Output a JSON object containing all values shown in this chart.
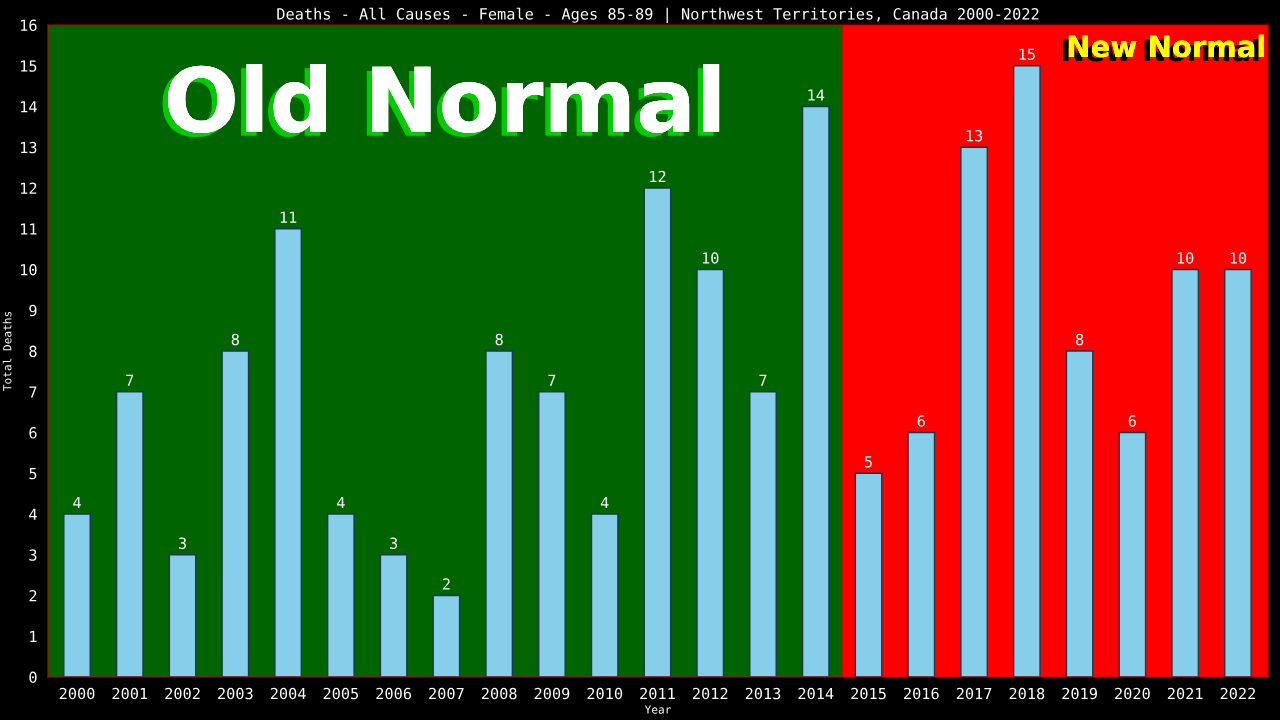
{
  "chart_data": {
    "type": "bar",
    "title": "Deaths - All Causes - Female - Ages 85-89 | Northwest Territories, Canada 2000-2022",
    "xlabel": "Year",
    "ylabel": "Total Deaths",
    "categories": [
      "2000",
      "2001",
      "2002",
      "2003",
      "2004",
      "2005",
      "2006",
      "2007",
      "2008",
      "2009",
      "2010",
      "2011",
      "2012",
      "2013",
      "2014",
      "2015",
      "2016",
      "2017",
      "2018",
      "2019",
      "2020",
      "2021",
      "2022"
    ],
    "values": [
      4,
      7,
      3,
      8,
      11,
      4,
      3,
      2,
      8,
      7,
      4,
      12,
      10,
      7,
      14,
      5,
      6,
      13,
      15,
      8,
      6,
      10,
      10
    ],
    "color": "#87ceeb",
    "ylim": [
      0,
      16
    ],
    "yticks": [
      0,
      1,
      2,
      3,
      4,
      5,
      6,
      7,
      8,
      9,
      10,
      11,
      12,
      13,
      14,
      15,
      16
    ],
    "data_labels": true,
    "grid": false,
    "legend": false,
    "bands": [
      {
        "axis": "x",
        "from": "2000",
        "to": "2014",
        "label": "Old Normal",
        "color": "#006400"
      },
      {
        "axis": "x",
        "from": "2015",
        "to": "2022",
        "label": "New Normal",
        "color": "#ff0000"
      }
    ]
  }
}
